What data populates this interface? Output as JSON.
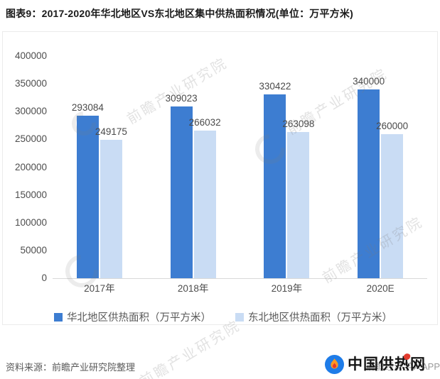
{
  "title": "图表9：2017-2020年华北地区VS东北地区集中供热面积情况(单位：万平方米)",
  "watermark": {
    "brand": "前瞻产业研究院",
    "app": "前瞻经济学人APP"
  },
  "chart_data": {
    "type": "bar",
    "title": "2017-2020年华北地区VS东北地区集中供热面积情况",
    "unit": "万平方米",
    "categories": [
      "2017年",
      "2018年",
      "2019年",
      "2020E"
    ],
    "series": [
      {
        "name": "华北地区供热面积（万平方米）",
        "color": "#3d7dd1",
        "values": [
          293084,
          309023,
          330422,
          340000
        ]
      },
      {
        "name": "东北地区供热面积（万平方米）",
        "color": "#c9dcf4",
        "values": [
          249175,
          266032,
          263098,
          260000
        ]
      }
    ],
    "xlabel": "",
    "ylabel": "",
    "ylim": [
      0,
      400000
    ],
    "ytick_step": 50000,
    "grid": false,
    "legend_position": "bottom"
  },
  "footer": {
    "source": "资料来源：前瞻产业研究院整理",
    "logo_text": "中国供热网"
  }
}
